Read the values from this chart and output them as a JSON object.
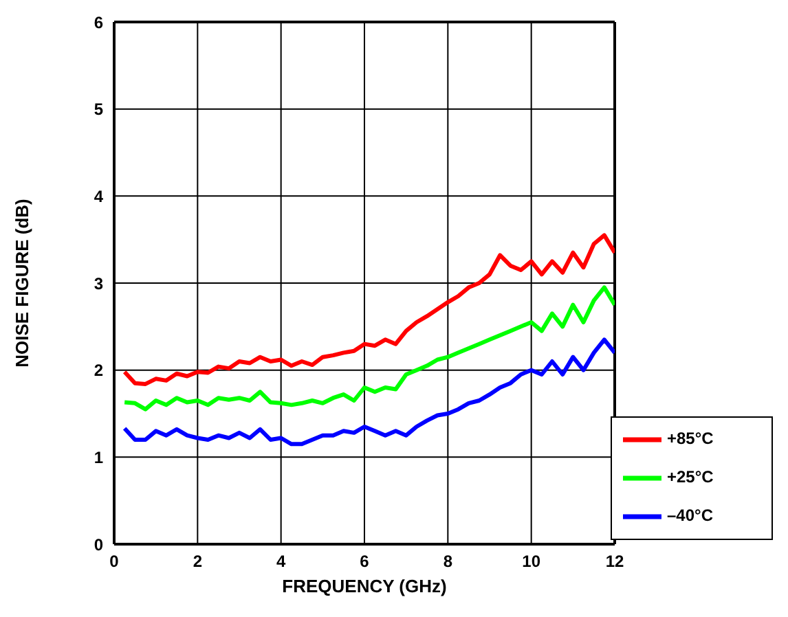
{
  "chart_data": {
    "type": "line",
    "xlabel": "FREQUENCY (GHz)",
    "ylabel": "NOISE FIGURE (dB)",
    "xlim": [
      0,
      12
    ],
    "xticks": [
      0,
      2,
      4,
      6,
      8,
      10,
      12
    ],
    "ylim": [
      0,
      6
    ],
    "yticks": [
      0,
      1,
      2,
      3,
      4,
      5,
      6
    ],
    "grid": true,
    "legend": "bottom right",
    "marker": "none",
    "line_style": "solid",
    "x": [
      0.25,
      0.5,
      0.75,
      1,
      1.25,
      1.5,
      1.75,
      2,
      2.25,
      2.5,
      2.75,
      3,
      3.25,
      3.5,
      3.75,
      4,
      4.25,
      4.5,
      4.75,
      5,
      5.25,
      5.5,
      5.75,
      6,
      6.25,
      6.5,
      6.75,
      7,
      7.25,
      7.5,
      7.75,
      8,
      8.25,
      8.5,
      8.75,
      9,
      9.25,
      9.5,
      9.75,
      10,
      10.25,
      10.5,
      10.75,
      11,
      11.25,
      11.5,
      11.75,
      12
    ],
    "series": [
      {
        "name": "+85°C",
        "color": "#ff0000",
        "values": [
          1.98,
          1.85,
          1.84,
          1.9,
          1.88,
          1.96,
          1.93,
          1.98,
          1.97,
          2.04,
          2.02,
          2.1,
          2.08,
          2.15,
          2.1,
          2.12,
          2.05,
          2.1,
          2.06,
          2.15,
          2.17,
          2.2,
          2.22,
          2.3,
          2.28,
          2.35,
          2.3,
          2.45,
          2.55,
          2.62,
          2.7,
          2.78,
          2.85,
          2.95,
          3.0,
          3.1,
          3.32,
          3.2,
          3.15,
          3.25,
          3.1,
          3.25,
          3.12,
          3.35,
          3.18,
          3.45,
          3.55,
          3.35
        ]
      },
      {
        "name": "+25°C",
        "color": "#00ff00",
        "values": [
          1.63,
          1.62,
          1.55,
          1.65,
          1.6,
          1.68,
          1.63,
          1.65,
          1.6,
          1.68,
          1.66,
          1.68,
          1.65,
          1.75,
          1.63,
          1.62,
          1.6,
          1.62,
          1.65,
          1.62,
          1.68,
          1.72,
          1.65,
          1.8,
          1.75,
          1.8,
          1.78,
          1.95,
          2.0,
          2.05,
          2.12,
          2.15,
          2.2,
          2.25,
          2.3,
          2.35,
          2.4,
          2.45,
          2.5,
          2.55,
          2.45,
          2.65,
          2.5,
          2.75,
          2.55,
          2.8,
          2.95,
          2.75
        ]
      },
      {
        "name": "–40°C",
        "color": "#0000ff",
        "values": [
          1.33,
          1.2,
          1.2,
          1.3,
          1.25,
          1.32,
          1.25,
          1.22,
          1.2,
          1.25,
          1.22,
          1.28,
          1.22,
          1.32,
          1.2,
          1.22,
          1.15,
          1.15,
          1.2,
          1.25,
          1.25,
          1.3,
          1.28,
          1.35,
          1.3,
          1.25,
          1.3,
          1.25,
          1.35,
          1.42,
          1.48,
          1.5,
          1.55,
          1.62,
          1.65,
          1.72,
          1.8,
          1.85,
          1.95,
          2.0,
          1.95,
          2.1,
          1.95,
          2.15,
          2.0,
          2.2,
          2.35,
          2.2
        ]
      }
    ]
  }
}
